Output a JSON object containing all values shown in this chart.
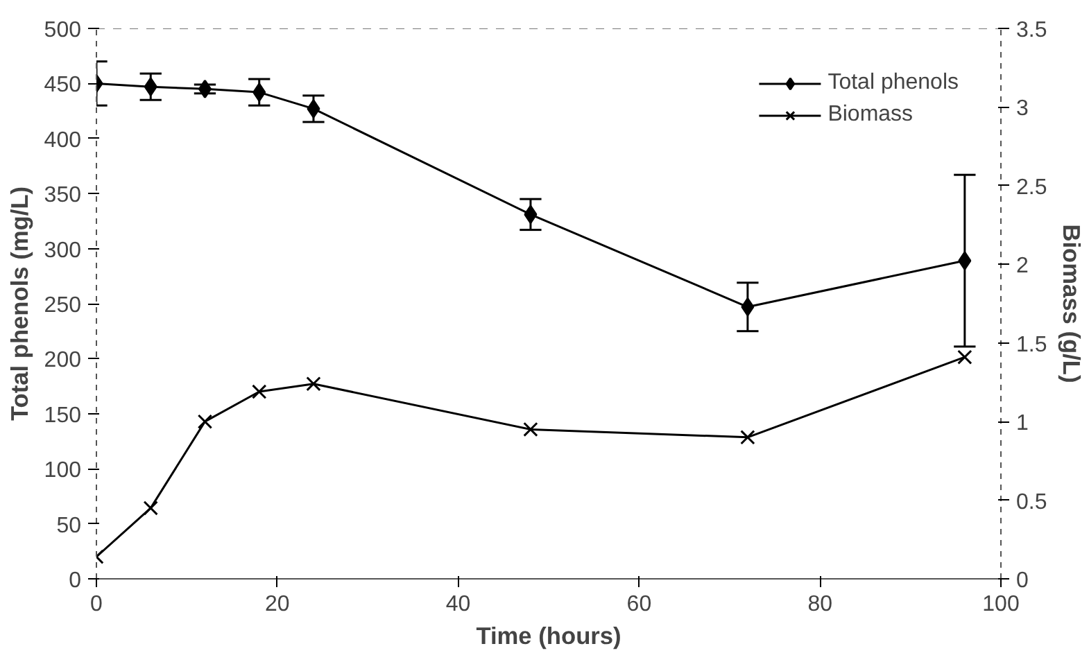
{
  "chart_data": {
    "type": "line",
    "xlabel": "Time (hours)",
    "ylabel": "Total phenols (mg/L)",
    "y2label": "Biomass (g/L)",
    "x": [
      0,
      6,
      12,
      18,
      24,
      48,
      72,
      96
    ],
    "series": [
      {
        "name": "Total phenols",
        "color": "#000000",
        "marker": "diamond",
        "values": [
          450,
          447,
          445,
          442,
          427,
          331,
          247,
          289
        ],
        "errors": [
          20,
          12,
          4,
          12,
          12,
          14,
          22,
          78
        ]
      },
      {
        "name": "Biomass",
        "color": "#000000",
        "marker": "cross",
        "axis": "y2",
        "values": [
          0.14,
          0.45,
          1.0,
          1.19,
          1.24,
          0.95,
          0.9,
          1.41
        ]
      }
    ],
    "xlim": [
      0,
      100
    ],
    "xticks": [
      0,
      20,
      40,
      60,
      80,
      100
    ],
    "ylim": [
      0,
      500
    ],
    "yticks": [
      0,
      50,
      100,
      150,
      200,
      250,
      300,
      350,
      400,
      450,
      500
    ],
    "y2lim": [
      0,
      3.5
    ],
    "y2ticks": [
      0,
      0.5,
      1,
      1.5,
      2,
      2.5,
      3,
      3.5
    ],
    "grid": false,
    "legend": "top right",
    "line_style": "solid"
  }
}
